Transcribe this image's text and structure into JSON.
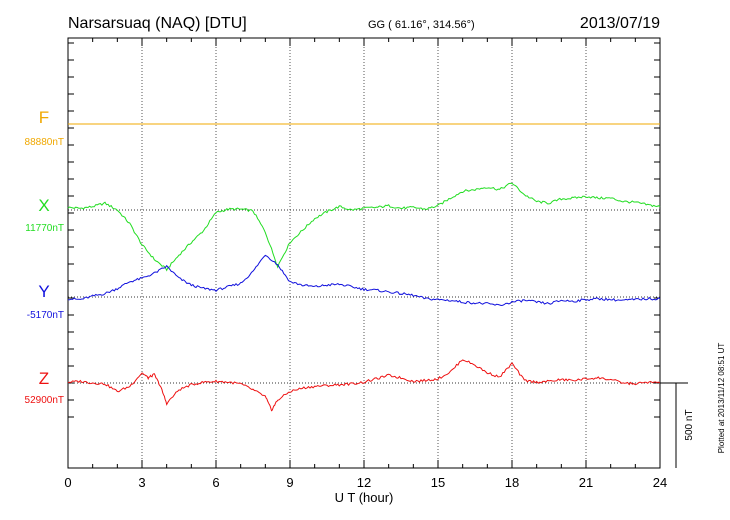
{
  "header": {
    "station": "Narsarsuaq (NAQ)  [DTU]",
    "coords": "GG ( 61.16°, 314.56°)",
    "date": "2013/07/19"
  },
  "plotted_note": "Plotted at 2013/11/12 08:51  UT",
  "scale_bar_label": "500 nT",
  "chart_data": {
    "type": "line",
    "xlabel": "U T (hour)",
    "xlim": [
      0,
      24
    ],
    "xticks": [
      "0",
      "3",
      "6",
      "9",
      "12",
      "15",
      "18",
      "21",
      "24"
    ],
    "scale_bar_nT": 500,
    "series": [
      {
        "name": "F",
        "baseline_label": "88880nT",
        "baseline": 88880,
        "color": "#f0a800",
        "x": [
          0,
          6,
          12,
          18,
          24
        ],
        "y": [
          88880,
          88880,
          88880,
          88880,
          88880
        ]
      },
      {
        "name": "X",
        "baseline_label": "11770nT",
        "baseline": 11770,
        "color": "#22dd22",
        "x": [
          0,
          0.5,
          1,
          1.5,
          2,
          2.5,
          3,
          3.5,
          4,
          4.5,
          5,
          5.5,
          6,
          6.5,
          7,
          7.5,
          8,
          8.5,
          9,
          9.5,
          10,
          10.5,
          11,
          11.5,
          12,
          12.5,
          13,
          13.5,
          14,
          14.5,
          15,
          15.5,
          16,
          16.5,
          17,
          17.5,
          18,
          18.5,
          19,
          19.5,
          20,
          20.5,
          21,
          21.5,
          22,
          22.5,
          23,
          23.5,
          24
        ],
        "y": [
          11785,
          11780,
          11790,
          11810,
          11770,
          11690,
          11565,
          11480,
          11420,
          11505,
          11580,
          11650,
          11755,
          11775,
          11775,
          11765,
          11640,
          11440,
          11580,
          11650,
          11720,
          11760,
          11790,
          11770,
          11780,
          11785,
          11795,
          11780,
          11785,
          11775,
          11795,
          11840,
          11880,
          11890,
          11905,
          11890,
          11930,
          11860,
          11820,
          11810,
          11835,
          11840,
          11850,
          11840,
          11840,
          11820,
          11815,
          11800,
          11790
        ]
      },
      {
        "name": "Y",
        "baseline_label": "-5170nT",
        "baseline": -5170,
        "color": "#1111dd",
        "x": [
          0,
          0.5,
          1,
          1.5,
          2,
          2.5,
          3,
          3.5,
          4,
          4.5,
          5,
          5.5,
          6,
          6.5,
          7,
          7.5,
          8,
          8.5,
          9,
          9.5,
          10,
          10.5,
          11,
          11.5,
          12,
          12.5,
          13,
          13.5,
          14,
          14.5,
          15,
          15.5,
          16,
          16.5,
          17,
          17.5,
          18,
          18.5,
          19,
          19.5,
          20,
          20.5,
          21,
          21.5,
          22,
          22.5,
          23,
          23.5,
          24
        ],
        "y": [
          -5180,
          -5185,
          -5165,
          -5150,
          -5120,
          -5080,
          -5060,
          -5030,
          -4990,
          -5060,
          -5100,
          -5120,
          -5130,
          -5110,
          -5090,
          -5020,
          -4920,
          -4980,
          -5080,
          -5100,
          -5110,
          -5100,
          -5095,
          -5110,
          -5125,
          -5130,
          -5140,
          -5150,
          -5160,
          -5180,
          -5185,
          -5190,
          -5200,
          -5205,
          -5210,
          -5220,
          -5200,
          -5190,
          -5200,
          -5210,
          -5190,
          -5195,
          -5185,
          -5180,
          -5185,
          -5190,
          -5185,
          -5180,
          -5180
        ]
      },
      {
        "name": "Z",
        "baseline_label": "52900nT",
        "baseline": 52900,
        "color": "#ee1111",
        "x": [
          0,
          0.5,
          1,
          1.5,
          2,
          2.5,
          3,
          3.25,
          3.5,
          3.75,
          4,
          4.5,
          5,
          5.5,
          6,
          6.5,
          7,
          7.5,
          8,
          8.25,
          8.5,
          9,
          9.5,
          10,
          10.5,
          11,
          11.5,
          12,
          12.5,
          13,
          13.5,
          14,
          14.5,
          15,
          15.5,
          16,
          16.5,
          17,
          17.5,
          18,
          18.5,
          19,
          19.5,
          20,
          20.5,
          21,
          21.5,
          22,
          22.5,
          23,
          23.5,
          24
        ],
        "y": [
          52905,
          52910,
          52900,
          52895,
          52850,
          52880,
          52960,
          52930,
          52950,
          52880,
          52780,
          52860,
          52890,
          52905,
          52910,
          52905,
          52895,
          52860,
          52820,
          52740,
          52800,
          52850,
          52870,
          52880,
          52885,
          52890,
          52895,
          52905,
          52925,
          52945,
          52930,
          52910,
          52915,
          52925,
          52965,
          53040,
          53005,
          52960,
          52935,
          53015,
          52915,
          52905,
          52910,
          52920,
          52915,
          52925,
          52930,
          52920,
          52900,
          52895,
          52905,
          52900
        ]
      }
    ]
  }
}
